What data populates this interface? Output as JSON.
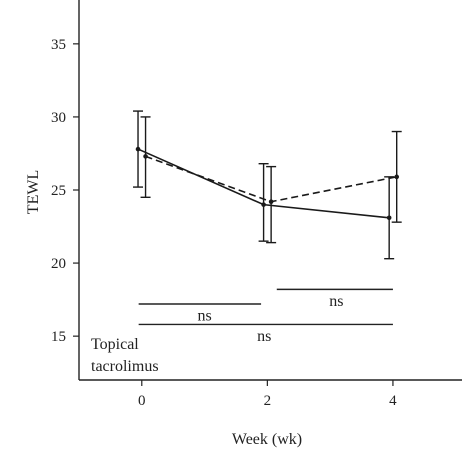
{
  "chart_data": {
    "type": "line",
    "title": "",
    "xlabel": "Week (wk)",
    "ylabel": "TEWL",
    "x_ticks": [
      0,
      2,
      4
    ],
    "x_tick_labels": [
      "0",
      "2",
      "4"
    ],
    "y_ticks": [
      15,
      20,
      25,
      30,
      35
    ],
    "y_tick_labels": [
      "15",
      "20",
      "25",
      "30",
      "35"
    ],
    "xlim": [
      -1,
      5.1
    ],
    "ylim": [
      12,
      38
    ],
    "grid": false,
    "legend_text": [
      "Topical",
      "tacrolimus"
    ],
    "series": [
      {
        "line_style": "solid",
        "x": [
          0,
          2,
          4
        ],
        "y": [
          27.8,
          24.0,
          23.1
        ],
        "err_low": [
          25.2,
          21.5,
          20.3
        ],
        "err_high": [
          30.4,
          26.8,
          25.9
        ]
      },
      {
        "line_style": "dashed",
        "x": [
          0,
          2,
          4
        ],
        "y": [
          27.3,
          24.2,
          25.9
        ],
        "err_low": [
          24.5,
          21.4,
          22.8
        ],
        "err_high": [
          30.0,
          26.6,
          29.0
        ]
      }
    ],
    "annotations": [
      {
        "text": "ns",
        "x_from": -0.05,
        "x_to": 1.9,
        "bracket_y": 17.2,
        "text_y": 16.4,
        "text_x": 1.0
      },
      {
        "text": "ns",
        "x_from": 2.15,
        "x_to": 4.0,
        "bracket_y": 18.2,
        "text_y": 17.4,
        "text_x": 3.1
      },
      {
        "text": "ns",
        "x_from": -0.05,
        "x_to": 4.0,
        "bracket_y": 15.8,
        "text_y": 15.0,
        "text_x": 1.95
      }
    ],
    "colors": {
      "axis": "#222222",
      "series": "#1a1a1a"
    }
  }
}
